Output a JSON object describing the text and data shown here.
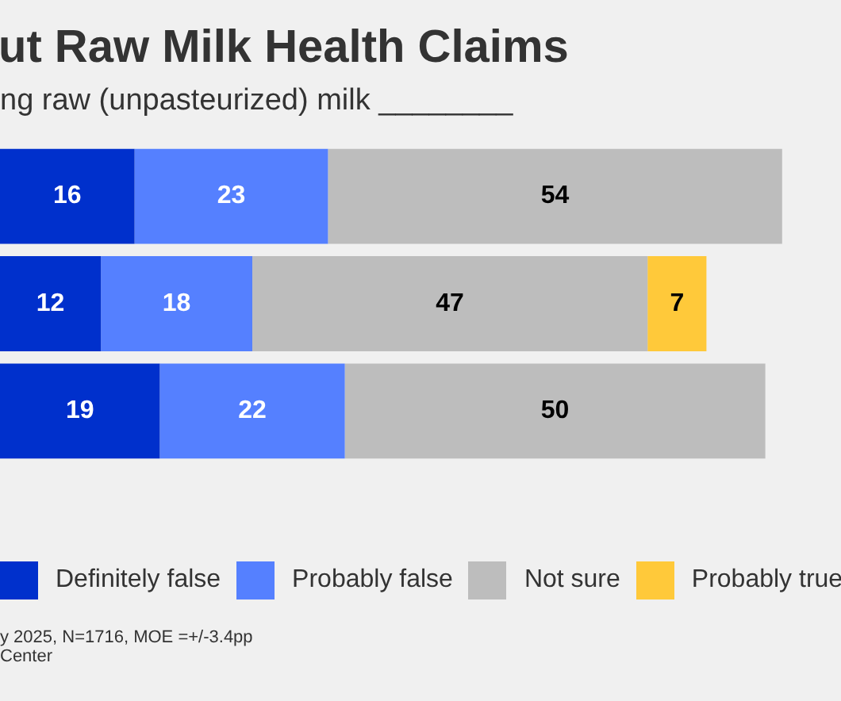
{
  "chart_data": {
    "type": "bar",
    "orientation": "horizontal",
    "stacked": true,
    "title": "ut Raw Milk Health Claims",
    "subtitle": "ng raw (unpasteurized) milk ________",
    "categories": [
      null,
      null,
      null
    ],
    "series": [
      {
        "name": "Definitely false",
        "color": "#0030cc",
        "values": [
          16,
          12,
          19
        ]
      },
      {
        "name": "Probably false",
        "color": "#5580ff",
        "values": [
          23,
          18,
          22
        ]
      },
      {
        "name": "Not sure",
        "color": "#bdbdbd",
        "values": [
          54,
          47,
          50
        ]
      },
      {
        "name": "Probably true",
        "color": "#ffc93a",
        "values": [
          null,
          7,
          null
        ]
      },
      {
        "color": "#d89a00",
        "values": [
          null,
          null,
          null
        ]
      }
    ],
    "tick_labels": false,
    "legend": "bottom",
    "data_labels": true,
    "annotations": [
      "y 2025, N=1716, MOE =+/-3.4pp",
      "Center"
    ]
  }
}
